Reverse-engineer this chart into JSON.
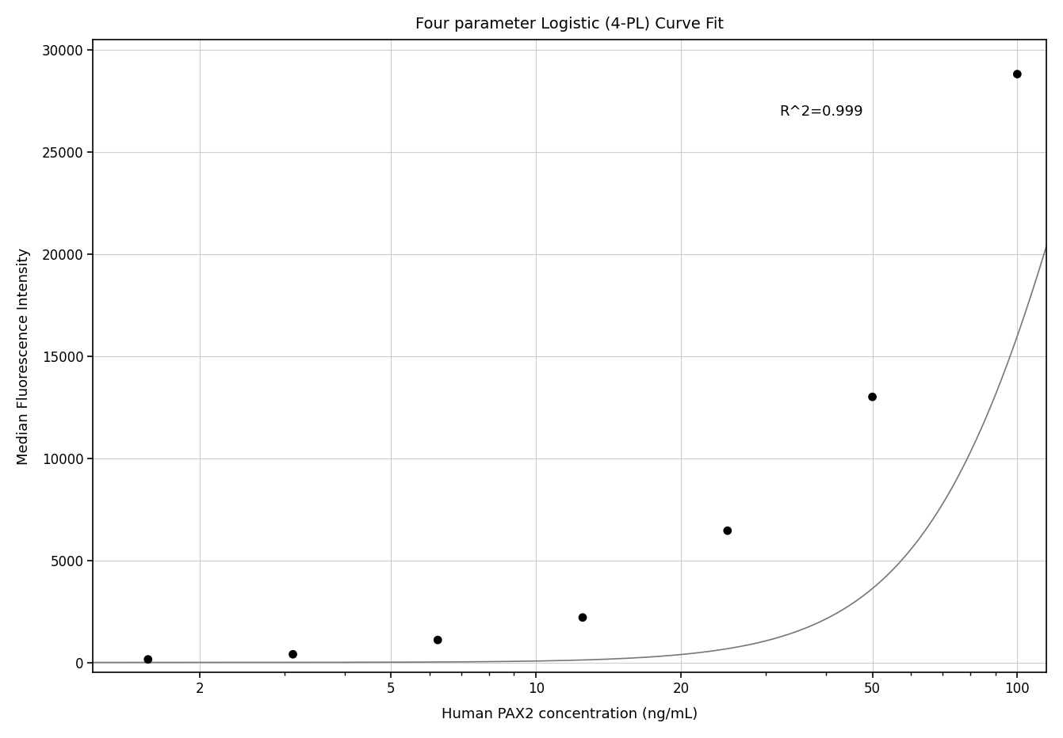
{
  "title": "Four parameter Logistic (4-PL) Curve Fit",
  "xlabel": "Human PAX2 concentration (ng/mL)",
  "ylabel": "Median Fluorescence Intensity",
  "r_squared_text": "R^2=0.999",
  "data_points_x": [
    1.5625,
    3.125,
    6.25,
    12.5,
    25,
    50,
    100
  ],
  "data_points_y": [
    150,
    400,
    1100,
    2200,
    6450,
    13000,
    28800
  ],
  "xscale": "log",
  "xlim": [
    1.2,
    115
  ],
  "ylim": [
    -500,
    30500
  ],
  "yticks": [
    0,
    5000,
    10000,
    15000,
    20000,
    25000,
    30000
  ],
  "xticks": [
    2,
    5,
    10,
    20,
    50,
    100
  ],
  "grid_color": "#cccccc",
  "curve_color": "#777777",
  "point_color": "#000000",
  "background_color": "#ffffff",
  "title_fontsize": 14,
  "label_fontsize": 13,
  "tick_fontsize": 12,
  "annotation_fontsize": 13,
  "point_size": 60,
  "line_width": 1.2
}
